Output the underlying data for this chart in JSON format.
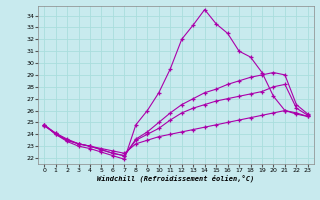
{
  "xlabel": "Windchill (Refroidissement éolien,°C)",
  "bg_color": "#c8eaee",
  "line_color": "#aa00aa",
  "grid_color": "#aadddd",
  "xlim": [
    -0.5,
    23.5
  ],
  "ylim": [
    21.5,
    34.8
  ],
  "yticks": [
    22,
    23,
    24,
    25,
    26,
    27,
    28,
    29,
    30,
    31,
    32,
    33,
    34
  ],
  "xticks": [
    0,
    1,
    2,
    3,
    4,
    5,
    6,
    7,
    8,
    9,
    10,
    11,
    12,
    13,
    14,
    15,
    16,
    17,
    18,
    19,
    20,
    21,
    22,
    23
  ],
  "series": [
    {
      "x": [
        0,
        1,
        2,
        3,
        4,
        5,
        6,
        7,
        8,
        9,
        10,
        11,
        12,
        13,
        14,
        15,
        16,
        17,
        18,
        19,
        20,
        21,
        22,
        23
      ],
      "y": [
        24.7,
        24.1,
        23.5,
        23.2,
        23.0,
        22.8,
        22.6,
        22.4,
        23.2,
        23.5,
        23.8,
        24.0,
        24.2,
        24.4,
        24.6,
        24.8,
        25.0,
        25.2,
        25.4,
        25.6,
        25.8,
        26.0,
        25.8,
        25.5
      ]
    },
    {
      "x": [
        0,
        1,
        2,
        3,
        4,
        5,
        6,
        7,
        8,
        9,
        10,
        11,
        12,
        13,
        14,
        15,
        16,
        17,
        18,
        19,
        20,
        21,
        22,
        23
      ],
      "y": [
        24.8,
        24.0,
        23.5,
        23.2,
        23.0,
        22.7,
        22.4,
        22.2,
        23.5,
        24.0,
        24.5,
        25.2,
        25.8,
        26.2,
        26.5,
        26.8,
        27.0,
        27.2,
        27.4,
        27.6,
        28.0,
        28.2,
        26.2,
        25.6
      ]
    },
    {
      "x": [
        0,
        1,
        2,
        3,
        4,
        5,
        6,
        7,
        8,
        9,
        10,
        11,
        12,
        13,
        14,
        15,
        16,
        17,
        18,
        19,
        20,
        21,
        22,
        23
      ],
      "y": [
        24.8,
        24.1,
        23.6,
        23.2,
        23.0,
        22.7,
        22.4,
        22.2,
        23.6,
        24.2,
        25.0,
        25.8,
        26.5,
        27.0,
        27.5,
        27.8,
        28.2,
        28.5,
        28.8,
        29.0,
        29.2,
        29.0,
        26.5,
        25.7
      ]
    },
    {
      "x": [
        0,
        1,
        2,
        3,
        4,
        5,
        6,
        7,
        8,
        9,
        10,
        11,
        12,
        13,
        14,
        15,
        16,
        17,
        18,
        19,
        20,
        21,
        22,
        23
      ],
      "y": [
        24.8,
        24.0,
        23.4,
        23.0,
        22.8,
        22.5,
        22.2,
        21.9,
        24.8,
        26.0,
        27.5,
        29.5,
        32.0,
        33.2,
        34.5,
        33.3,
        32.5,
        31.0,
        30.5,
        29.2,
        27.2,
        26.0,
        25.7,
        25.5
      ]
    }
  ]
}
